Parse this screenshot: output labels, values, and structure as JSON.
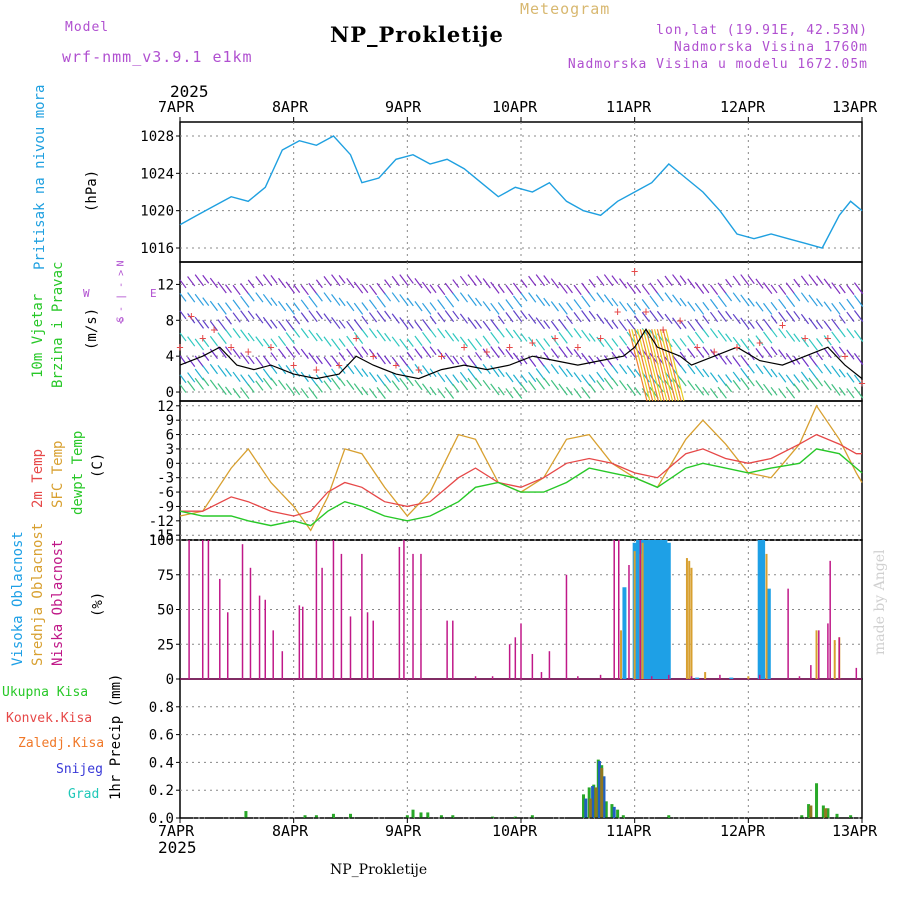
{
  "header": {
    "model_label": "Model",
    "model_name": "wrf-nmm_v3.9.1  e1km",
    "title": "NP_Prokletije",
    "subtitle": "Meteogram",
    "coords": "lon,lat (19.91E, 42.53N)",
    "elevation": "Nadmorska Visina 1760m",
    "model_elevation": "Nadmorska Visina u modelu 1672.05m",
    "footer_title": "NP_Prokletije",
    "credit": "made by Angel"
  },
  "colors": {
    "pressure": "#1fa0e0",
    "temp2m": "#e64848",
    "sfc": "#d8a030",
    "dew": "#28c828",
    "high_cloud": "#1ea0e6",
    "mid_cloud": "#d8a030",
    "low_cloud": "#c01888",
    "model_text": "#b050d0",
    "meteogram_text": "#d8b870"
  },
  "time_axis": {
    "year": "2025",
    "ticks": [
      "7APR",
      "8APR",
      "9APR",
      "10APR",
      "11APR",
      "12APR",
      "13APR"
    ]
  },
  "wind_legend": {
    "n": "N",
    "e": "E",
    "s": "S",
    "w": "W",
    "arrow_text": "< - | - >"
  },
  "panels": {
    "pressure": {
      "label": "Pritisak na nivou mora",
      "unit": "(hPa)"
    },
    "wind": {
      "label1": "10m Vjetar",
      "label2": "Brzina i Pravac",
      "unit": "(m/s)"
    },
    "temp": {
      "l1": "2m Temp",
      "l2": "SFC Temp",
      "l3": "dewpt Temp",
      "unit": "(C)"
    },
    "cloud": {
      "l1": "Visoka Oblacnost",
      "l2": "Srednja Oblacnost",
      "l3": "Niska Oblacnost",
      "unit": "(%)"
    },
    "precip": {
      "unit": "1hr Precip (mm)",
      "legend": [
        "Ukupna Kisa",
        "Konvek.Kisa",
        "Zaledj.Kisa",
        "Snijeg",
        "Grad"
      ]
    }
  },
  "chart_data": [
    {
      "type": "line",
      "name": "pressure",
      "ylim": [
        1014.5,
        1029.5
      ],
      "yticks": [
        1016,
        1020,
        1024,
        1028
      ],
      "x_days": [
        0,
        0.15,
        0.3,
        0.45,
        0.6,
        0.75,
        0.9,
        1.05,
        1.2,
        1.35,
        1.5,
        1.6,
        1.75,
        1.9,
        2.05,
        2.2,
        2.35,
        2.5,
        2.65,
        2.8,
        2.95,
        3.1,
        3.25,
        3.4,
        3.55,
        3.7,
        3.85,
        4.0,
        4.15,
        4.3,
        4.45,
        4.6,
        4.75,
        4.9,
        5.05,
        5.2,
        5.35,
        5.5,
        5.65,
        5.8,
        5.9,
        6.0
      ],
      "values": [
        1018.5,
        1019.5,
        1020.5,
        1021.5,
        1021.0,
        1022.5,
        1026.5,
        1027.5,
        1027.0,
        1028.0,
        1026.0,
        1023.0,
        1023.5,
        1025.5,
        1026.0,
        1025.0,
        1025.5,
        1024.5,
        1023.0,
        1021.5,
        1022.5,
        1022.0,
        1023.0,
        1021.0,
        1020.0,
        1019.5,
        1021.0,
        1022.0,
        1023.0,
        1025.0,
        1023.5,
        1022.0,
        1020.0,
        1017.5,
        1017.0,
        1017.5,
        1017.0,
        1016.5,
        1016.0,
        1019.5,
        1021.0,
        1020.0
      ]
    },
    {
      "type": "line",
      "name": "wind",
      "ylim": [
        -1,
        14.5
      ],
      "yticks": [
        0,
        4,
        8,
        12
      ],
      "speed_x_days": [
        0,
        0.2,
        0.35,
        0.5,
        0.65,
        0.8,
        1.0,
        1.2,
        1.4,
        1.55,
        1.7,
        1.9,
        2.1,
        2.3,
        2.5,
        2.7,
        2.9,
        3.1,
        3.3,
        3.5,
        3.7,
        3.9,
        4.0,
        4.1,
        4.2,
        4.3,
        4.4,
        4.5,
        4.7,
        4.9,
        5.1,
        5.3,
        5.5,
        5.7,
        5.85,
        6.0
      ],
      "speed": [
        3,
        4,
        5,
        3,
        2.5,
        3,
        2,
        1.5,
        2,
        4,
        3,
        2,
        1.5,
        2.5,
        3,
        2.5,
        3,
        4,
        3.5,
        3,
        3.5,
        4,
        5,
        7,
        5,
        4.5,
        4,
        3,
        4,
        5,
        3.5,
        3,
        4,
        5,
        3,
        1.5
      ],
      "gust_x_days": [
        0,
        0.1,
        0.2,
        0.3,
        0.45,
        0.6,
        0.8,
        1.0,
        1.2,
        1.4,
        1.55,
        1.7,
        1.9,
        2.1,
        2.3,
        2.5,
        2.7,
        2.9,
        3.1,
        3.3,
        3.5,
        3.7,
        3.85,
        4.0,
        4.1,
        4.25,
        4.4,
        4.55,
        4.7,
        4.9,
        5.1,
        5.3,
        5.5,
        5.7,
        5.85,
        6.0
      ],
      "gust": [
        5,
        8.5,
        6,
        7,
        5,
        4.5,
        5,
        3,
        2.5,
        3,
        6,
        4,
        3,
        2.5,
        4,
        5,
        4.5,
        5,
        5.5,
        6,
        5,
        6,
        9,
        13.5,
        9,
        7,
        8,
        5,
        4.5,
        5,
        5.5,
        7.5,
        6,
        6,
        4,
        1
      ]
    },
    {
      "type": "line",
      "name": "temperature",
      "ylim": [
        -16,
        13
      ],
      "yticks": [
        -15,
        -12,
        -9,
        -6,
        -3,
        0,
        3,
        6,
        9,
        12
      ],
      "x_days": [
        0,
        0.2,
        0.45,
        0.6,
        0.8,
        1.0,
        1.15,
        1.3,
        1.45,
        1.6,
        1.8,
        2.0,
        2.2,
        2.45,
        2.6,
        2.8,
        3.0,
        3.2,
        3.4,
        3.6,
        3.8,
        4.0,
        4.2,
        4.45,
        4.6,
        4.8,
        5.0,
        5.2,
        5.45,
        5.6,
        5.8,
        5.95,
        6.0
      ],
      "t2m": [
        -10,
        -10,
        -7,
        -8,
        -10,
        -11,
        -10,
        -6,
        -4,
        -5,
        -8,
        -9,
        -8,
        -3,
        -1,
        -4,
        -5,
        -3,
        0,
        1,
        0,
        -2,
        -3,
        2,
        3,
        1,
        0,
        1,
        4,
        6,
        4,
        2,
        2
      ],
      "sfc": [
        -11,
        -10,
        -1,
        3,
        -4,
        -9,
        -14,
        -7,
        3,
        2,
        -5,
        -11,
        -6,
        6,
        5,
        -4,
        -6,
        -3,
        5,
        6,
        0,
        -3,
        -5,
        5,
        9,
        4,
        -2,
        -3,
        4,
        12,
        5,
        -2,
        -4
      ],
      "dew": [
        -10,
        -11,
        -11,
        -12,
        -13,
        -12,
        -13,
        -10,
        -8,
        -9,
        -11,
        -12,
        -11,
        -8,
        -5,
        -4,
        -6,
        -6,
        -4,
        -1,
        -2,
        -3,
        -5,
        -1,
        0,
        -1,
        -2,
        -1,
        0,
        3,
        2,
        -1,
        -2
      ]
    },
    {
      "type": "bar",
      "name": "cloud",
      "ylim": [
        0,
        100
      ],
      "yticks": [
        0,
        25,
        50,
        75,
        100
      ],
      "low": [
        [
          0.08,
          100
        ],
        [
          0.2,
          100
        ],
        [
          0.25,
          100
        ],
        [
          0.35,
          72
        ],
        [
          0.42,
          48
        ],
        [
          0.55,
          97
        ],
        [
          0.62,
          80
        ],
        [
          0.7,
          60
        ],
        [
          0.75,
          57
        ],
        [
          0.82,
          35
        ],
        [
          0.9,
          20
        ],
        [
          1.05,
          53
        ],
        [
          1.08,
          52
        ],
        [
          1.2,
          100
        ],
        [
          1.25,
          80
        ],
        [
          1.35,
          100
        ],
        [
          1.42,
          90
        ],
        [
          1.5,
          45
        ],
        [
          1.6,
          90
        ],
        [
          1.65,
          48
        ],
        [
          1.7,
          42
        ],
        [
          1.93,
          95
        ],
        [
          1.97,
          100
        ],
        [
          2.05,
          90
        ],
        [
          2.12,
          90
        ],
        [
          2.35,
          42
        ],
        [
          2.4,
          42
        ],
        [
          2.6,
          2
        ],
        [
          2.75,
          2
        ],
        [
          2.9,
          25
        ],
        [
          2.95,
          30
        ],
        [
          3.0,
          40
        ],
        [
          3.1,
          18
        ],
        [
          3.18,
          5
        ],
        [
          3.25,
          20
        ],
        [
          3.4,
          75
        ],
        [
          3.5,
          2
        ],
        [
          3.7,
          3
        ],
        [
          3.82,
          100
        ],
        [
          3.86,
          100
        ],
        [
          3.95,
          82
        ],
        [
          4.05,
          100
        ],
        [
          4.15,
          2
        ],
        [
          4.3,
          3
        ],
        [
          4.5,
          2
        ],
        [
          4.75,
          3
        ],
        [
          5.1,
          3
        ],
        [
          5.35,
          65
        ],
        [
          5.45,
          2
        ],
        [
          5.55,
          10
        ],
        [
          5.62,
          35
        ],
        [
          5.7,
          40
        ],
        [
          5.72,
          85
        ],
        [
          5.8,
          30
        ],
        [
          5.95,
          8
        ]
      ],
      "mid": [
        [
          3.88,
          35
        ],
        [
          4.0,
          92
        ],
        [
          4.05,
          90
        ],
        [
          4.07,
          98
        ],
        [
          4.46,
          87
        ],
        [
          4.48,
          85
        ],
        [
          4.5,
          80
        ],
        [
          4.62,
          5
        ],
        [
          5.0,
          2
        ],
        [
          5.16,
          90
        ],
        [
          5.6,
          35
        ],
        [
          5.76,
          28
        ],
        [
          5.8,
          30
        ]
      ],
      "high": [
        [
          3.91,
          66
        ],
        [
          4.0,
          98
        ],
        [
          4.03,
          100
        ],
        [
          4.06,
          100
        ],
        [
          4.09,
          100
        ],
        [
          4.12,
          100
        ],
        [
          4.15,
          100
        ],
        [
          4.18,
          100
        ],
        [
          4.21,
          100
        ],
        [
          4.24,
          100
        ],
        [
          4.27,
          100
        ],
        [
          4.3,
          98
        ],
        [
          5.1,
          100
        ],
        [
          5.13,
          100
        ],
        [
          5.18,
          65
        ],
        [
          4.55,
          1
        ],
        [
          4.85,
          1
        ]
      ]
    },
    {
      "type": "bar",
      "name": "precip",
      "ylim": [
        0,
        1.0
      ],
      "yticks": [
        0,
        0.2,
        0.4,
        0.6,
        0.8
      ],
      "total": [
        [
          0.58,
          0.05
        ],
        [
          1.1,
          0.02
        ],
        [
          1.2,
          0.02
        ],
        [
          1.35,
          0.03
        ],
        [
          1.5,
          0.03
        ],
        [
          2.0,
          0.02
        ],
        [
          2.05,
          0.06
        ],
        [
          2.12,
          0.04
        ],
        [
          2.18,
          0.04
        ],
        [
          2.3,
          0.02
        ],
        [
          2.4,
          0.02
        ],
        [
          2.75,
          0.01
        ],
        [
          2.95,
          0.01
        ],
        [
          3.1,
          0.02
        ],
        [
          3.55,
          0.17
        ],
        [
          3.6,
          0.22
        ],
        [
          3.64,
          0.24
        ],
        [
          3.68,
          0.42
        ],
        [
          3.71,
          0.38
        ],
        [
          3.75,
          0.12
        ],
        [
          3.8,
          0.1
        ],
        [
          3.85,
          0.06
        ],
        [
          3.9,
          0.02
        ],
        [
          4.3,
          0.02
        ],
        [
          5.47,
          0.02
        ],
        [
          5.53,
          0.1
        ],
        [
          5.6,
          0.25
        ],
        [
          5.66,
          0.09
        ],
        [
          5.7,
          0.07
        ],
        [
          5.78,
          0.03
        ],
        [
          5.9,
          0.02
        ]
      ],
      "snow": [
        [
          3.57,
          0.14
        ],
        [
          3.63,
          0.23
        ],
        [
          3.69,
          0.41
        ],
        [
          3.73,
          0.3
        ],
        [
          3.82,
          0.08
        ]
      ],
      "frz": [
        [
          3.61,
          0.14
        ],
        [
          3.66,
          0.22
        ],
        [
          3.71,
          0.36
        ],
        [
          5.55,
          0.09
        ],
        [
          5.68,
          0.07
        ]
      ]
    }
  ]
}
